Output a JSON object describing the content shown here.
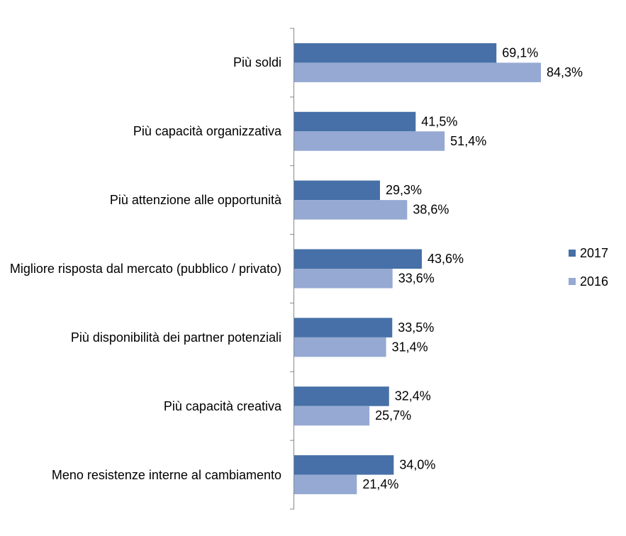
{
  "chart_data": {
    "type": "bar",
    "orientation": "horizontal",
    "categories": [
      "Più soldi",
      "Più capacità organizzativa",
      "Più attenzione alle opportunità",
      "Migliore risposta dal mercato (pubblico / privato)",
      "Più disponibilità dei partner potenziali",
      "Più capacità creativa",
      "Meno resistenze interne al cambiamento"
    ],
    "series": [
      {
        "name": "2017",
        "color": "#4670a7",
        "values": [
          69.1,
          41.5,
          29.3,
          43.6,
          33.5,
          32.4,
          34.0
        ],
        "value_labels": [
          "69,1%",
          "41,5%",
          "29,3%",
          "43,6%",
          "33,5%",
          "32,4%",
          "34,0%"
        ]
      },
      {
        "name": "2016",
        "color": "#95a9d2",
        "values": [
          84.3,
          51.4,
          38.6,
          33.6,
          31.4,
          25.7,
          21.4
        ],
        "value_labels": [
          "84,3%",
          "51,4%",
          "38,6%",
          "33,6%",
          "31,4%",
          "25,7%",
          "21,4%"
        ]
      }
    ],
    "legend": "right"
  }
}
